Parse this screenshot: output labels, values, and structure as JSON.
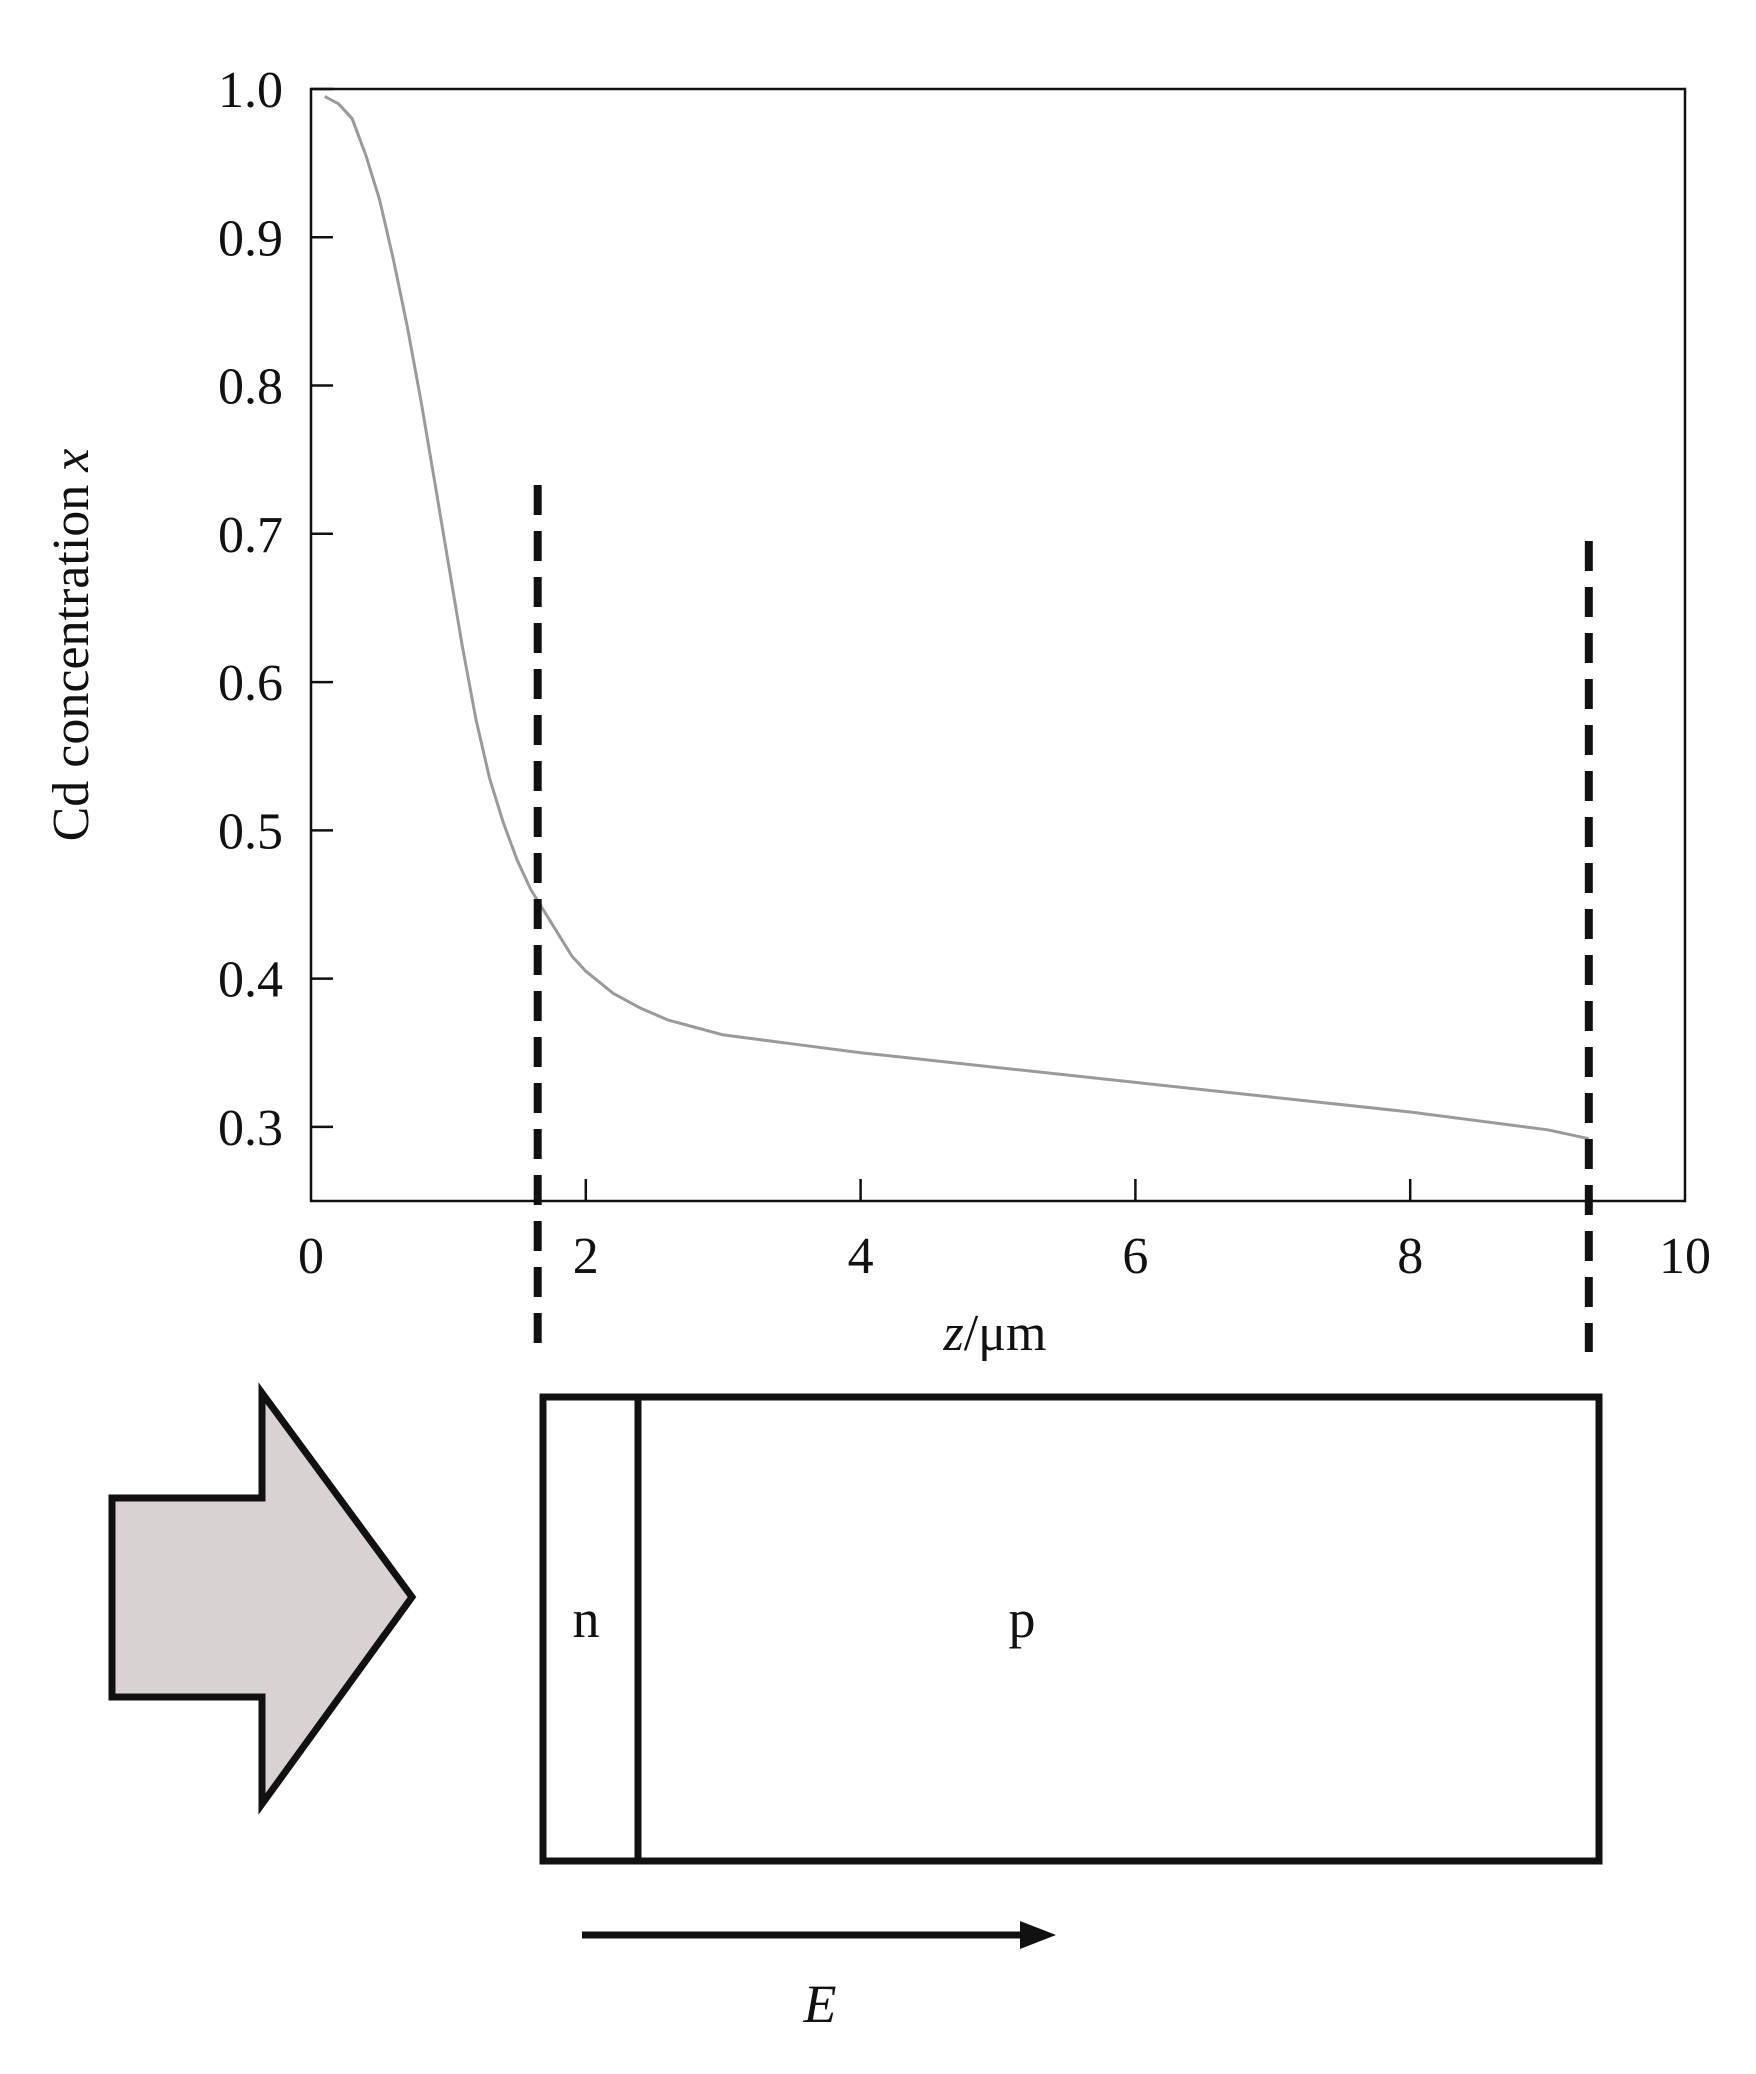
{
  "chart_data": {
    "type": "line",
    "ylabel": "Cd concentration x",
    "xlabel": "z/μm",
    "xlim": [
      0,
      10
    ],
    "ylim": [
      0.25,
      1.0
    ],
    "xticks": [
      0,
      2,
      4,
      6,
      8,
      10
    ],
    "xtick_labels": [
      "0",
      "2",
      "4",
      "6",
      "8",
      "10"
    ],
    "yticks": [
      0.3,
      0.4,
      0.5,
      0.6,
      0.7,
      0.8,
      0.9,
      1.0
    ],
    "ytick_labels": [
      "0.3",
      "0.4",
      "0.5",
      "0.6",
      "0.7",
      "0.8",
      "0.9",
      "1.0"
    ],
    "grid": false,
    "series": [
      {
        "color": "#9a9a9a",
        "x": [
          0.1,
          0.2,
          0.3,
          0.4,
          0.5,
          0.6,
          0.7,
          0.8,
          0.9,
          1.0,
          1.1,
          1.2,
          1.3,
          1.4,
          1.5,
          1.6,
          1.7,
          1.8,
          1.9,
          2.0,
          2.2,
          2.4,
          2.6,
          2.8,
          3.0,
          3.5,
          4.0,
          5.0,
          6.0,
          7.0,
          8.0,
          9.0,
          9.3
        ],
        "y": [
          0.995,
          0.99,
          0.98,
          0.955,
          0.925,
          0.885,
          0.84,
          0.79,
          0.735,
          0.68,
          0.625,
          0.575,
          0.535,
          0.505,
          0.48,
          0.46,
          0.445,
          0.43,
          0.415,
          0.405,
          0.39,
          0.38,
          0.372,
          0.367,
          0.362,
          0.356,
          0.35,
          0.34,
          0.33,
          0.32,
          0.31,
          0.298,
          0.292
        ]
      }
    ],
    "vlines": [
      {
        "x": 1.65,
        "style": "dashed"
      },
      {
        "x": 9.3,
        "style": "dashed"
      }
    ]
  },
  "diagram": {
    "n_label": "n",
    "p_label": "p",
    "field_label": "E",
    "arrow_fill": "#d9d2d2"
  }
}
